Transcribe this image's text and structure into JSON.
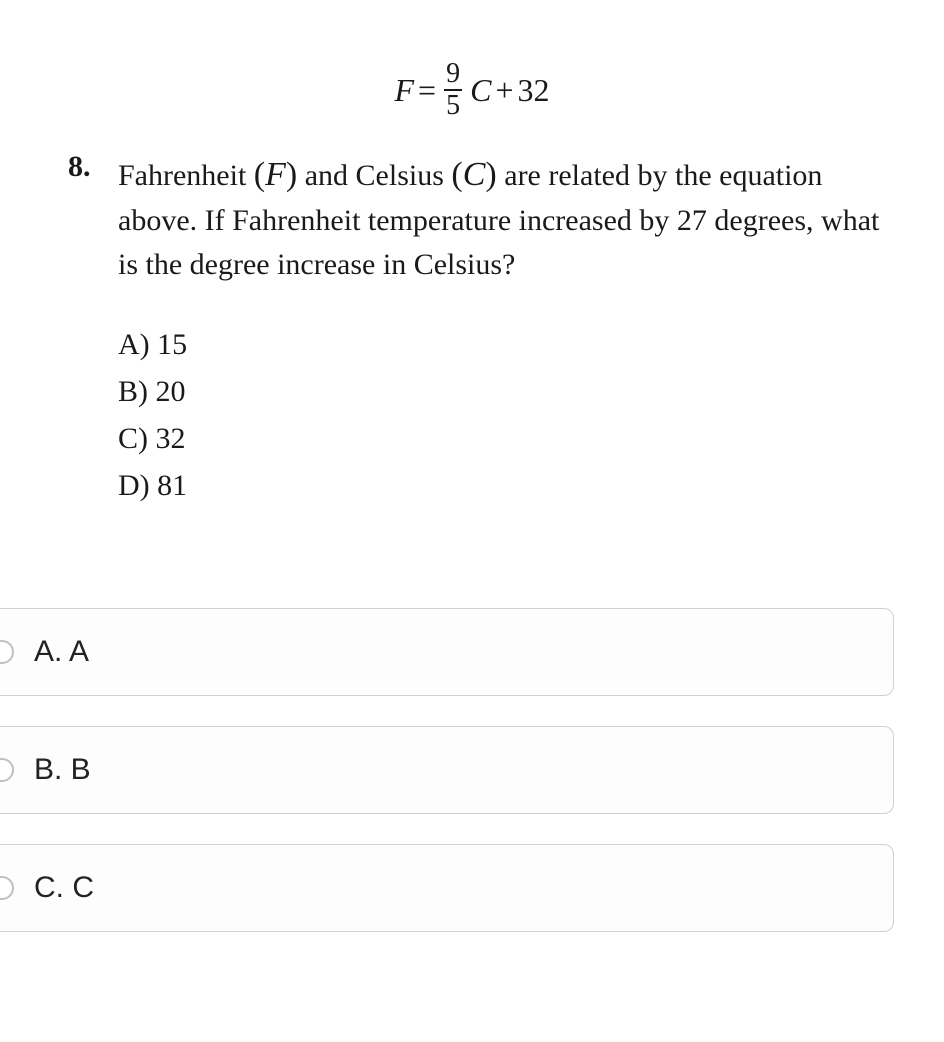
{
  "equation": {
    "lhs_var": "F",
    "equals": "=",
    "frac_num": "9",
    "frac_den": "5",
    "rhs_var": "C",
    "plus": "+",
    "constant": "32"
  },
  "question": {
    "number": "8.",
    "text_part1": "Fahrenheit ",
    "var1_open": "(",
    "var1": "F",
    "var1_close": ")",
    "text_part2": " and Celsius ",
    "var2_open": "(",
    "var2": "C",
    "var2_close": ")",
    "text_part3": " are related by the equation above. If Fahrenheit temperature increased by 27 degrees, what is the degree increase in Celsius?"
  },
  "inline_choices": {
    "a": "A)  15",
    "b": "B)  20",
    "c": "C)  32",
    "d": "D)  81"
  },
  "answer_options": {
    "a": "A. A",
    "b": "B. B",
    "c": "C. C"
  },
  "colors": {
    "text": "#1a1a1a",
    "option_border": "#d0d0d0",
    "radio_border": "#c0c0c0",
    "background": "#ffffff"
  }
}
